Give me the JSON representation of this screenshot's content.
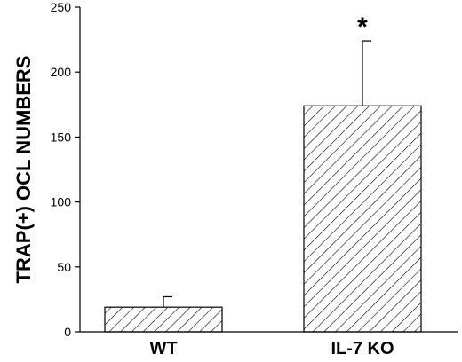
{
  "chart_data": {
    "type": "bar",
    "categories": [
      "WT",
      "IL-7 KO"
    ],
    "values": [
      19,
      174
    ],
    "errors": [
      8,
      50
    ],
    "ylabel": "TRAP(+) OCL NUMBERS",
    "xlabel": "",
    "ylim": [
      0,
      250
    ],
    "yticks": [
      "0",
      "50",
      "100",
      "150",
      "200",
      "250"
    ],
    "annotations": [
      {
        "category": "IL-7 KO",
        "text": "*"
      }
    ],
    "bar_fill": "hatched",
    "grid": false,
    "colors": {
      "bar_stroke": "#000000",
      "hatch": "#000000",
      "background": "#ffffff"
    }
  }
}
